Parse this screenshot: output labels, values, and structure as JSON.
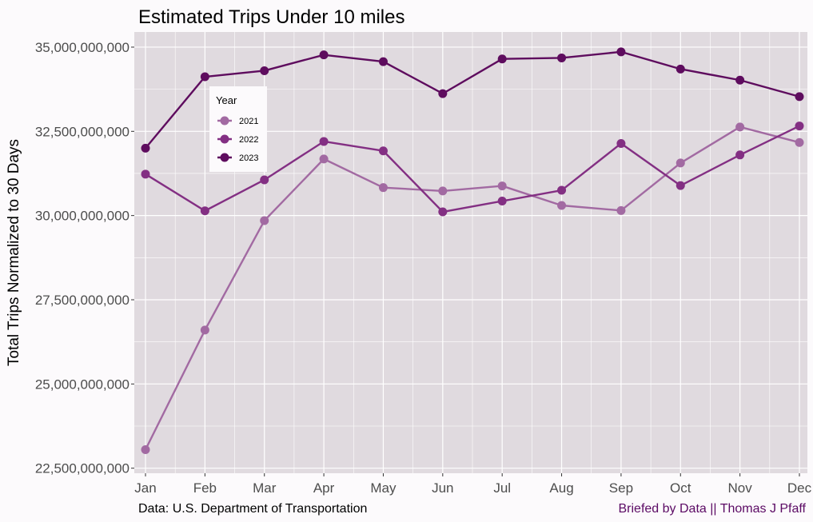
{
  "colors": {
    "background": "#fcfafc",
    "panel": "#e0dadf",
    "grid": "#ffffff",
    "caption_right": "#5b0a64"
  },
  "chart_data": {
    "type": "line",
    "title": "Estimated Trips Under 10 miles",
    "xlabel": "",
    "ylabel": "Total Trips Normalized to 30 Days",
    "categories": [
      "Jan",
      "Feb",
      "Mar",
      "Apr",
      "May",
      "Jun",
      "Jul",
      "Aug",
      "Sep",
      "Oct",
      "Nov",
      "Dec"
    ],
    "y_ticks": [
      22500000000,
      25000000000,
      27500000000,
      30000000000,
      32500000000,
      35000000000
    ],
    "y_tick_labels": [
      "22,500,000,000",
      "25,000,000,000",
      "27,500,000,000",
      "30,000,000,000",
      "32,500,000,000",
      "35,000,000,000"
    ],
    "ylim": [
      22350000000,
      35450000000
    ],
    "grid": true,
    "legend": {
      "title": "Year",
      "placement": "top-left"
    },
    "series": [
      {
        "name": "2021",
        "color": "#a26aa2",
        "values": [
          23050000000,
          26600000000,
          29850000000,
          31680000000,
          30830000000,
          30730000000,
          30880000000,
          30300000000,
          30150000000,
          31560000000,
          32630000000,
          32170000000
        ]
      },
      {
        "name": "2022",
        "color": "#832f83",
        "values": [
          31230000000,
          30140000000,
          31060000000,
          32200000000,
          31920000000,
          30110000000,
          30430000000,
          30750000000,
          32140000000,
          30890000000,
          31800000000,
          32660000000
        ]
      },
      {
        "name": "2023",
        "color": "#5e0c5e",
        "values": [
          32000000000,
          34120000000,
          34300000000,
          34770000000,
          34570000000,
          33620000000,
          34650000000,
          34680000000,
          34860000000,
          34350000000,
          34020000000,
          33530000000
        ]
      }
    ],
    "captions": {
      "left": "Data: U.S. Department of Transportation",
      "right": "Briefed by Data || Thomas J Pfaff"
    }
  }
}
